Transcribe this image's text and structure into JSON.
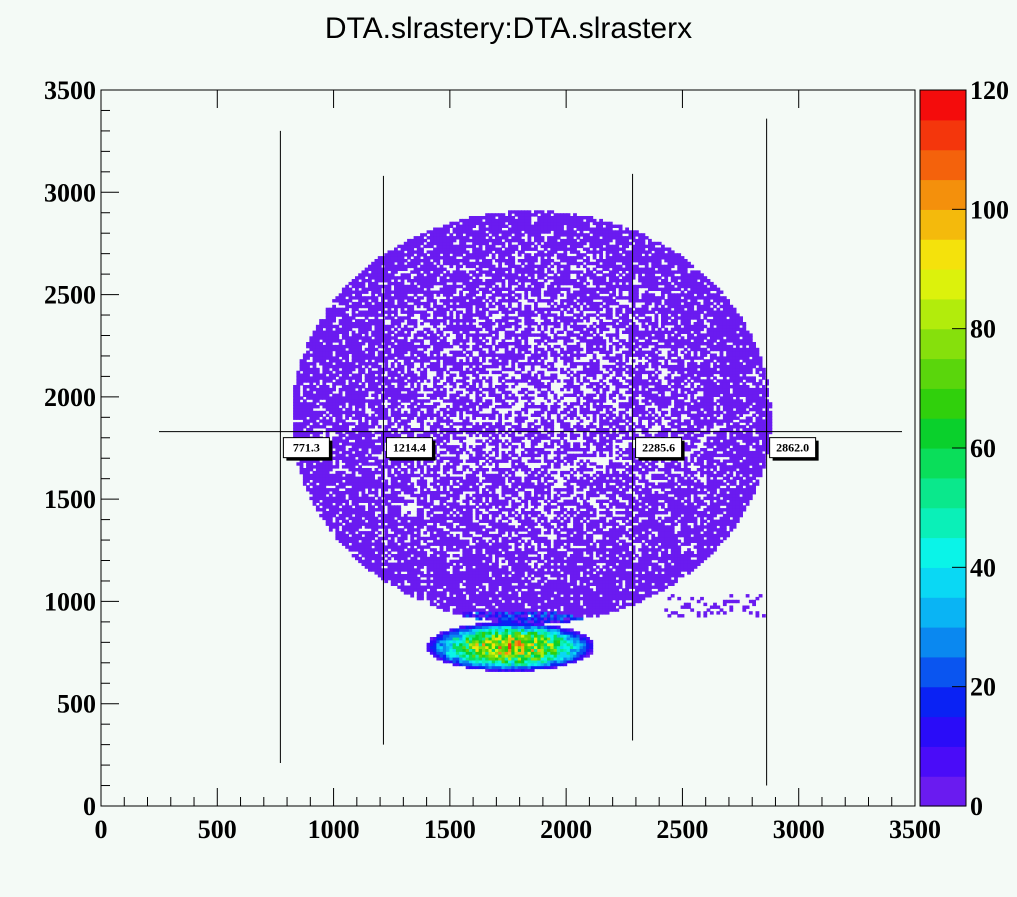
{
  "chart_data": {
    "type": "heatmap",
    "title": "DTA.slrastery:DTA.slrasterx",
    "xlabel": "",
    "ylabel": "",
    "xlim": [
      0,
      3500
    ],
    "ylim": [
      0,
      3500
    ],
    "x_ticks": [
      0,
      500,
      1000,
      1500,
      2000,
      2500,
      3000,
      3500
    ],
    "y_ticks": [
      0,
      500,
      1000,
      1500,
      2000,
      2500,
      3000,
      3500
    ],
    "colorbar": {
      "range": [
        0,
        120
      ],
      "ticks": [
        0,
        20,
        40,
        60,
        80,
        100,
        120
      ],
      "colors": [
        "#6a1bf0",
        "#4a0cf8",
        "#2a0cf8",
        "#0a22f4",
        "#0a55f0",
        "#0a88f0",
        "#0ab4f4",
        "#0ad8f4",
        "#0af4e8",
        "#0af0b8",
        "#0ae88c",
        "#0ade5a",
        "#0ad02c",
        "#30d00c",
        "#5ad60c",
        "#86e00c",
        "#b2ec0c",
        "#dcf20c",
        "#f4e20c",
        "#f4ba0c",
        "#f4900c",
        "#f4620c",
        "#f4360c",
        "#f40c0c"
      ]
    },
    "markers": {
      "horizontal_y": 1830,
      "vertical": [
        {
          "x": 771.3,
          "label": "771.3",
          "y_from": 210,
          "y_to": 3300
        },
        {
          "x": 1214.4,
          "label": "1214.4",
          "y_from": 300,
          "y_to": 3080
        },
        {
          "x": 2285.6,
          "label": "2285.6",
          "y_from": 320,
          "y_to": 3090
        },
        {
          "x": 2862.0,
          "label": "2862.0",
          "y_from": 100,
          "y_to": 3360
        }
      ]
    },
    "distribution": {
      "blob_center": [
        1850,
        1900
      ],
      "blob_radii": [
        1030,
        1010
      ],
      "hotspot_center": [
        1760,
        780
      ],
      "hotspot_radii": [
        360,
        120
      ],
      "hotspot_peak": 110
    }
  }
}
